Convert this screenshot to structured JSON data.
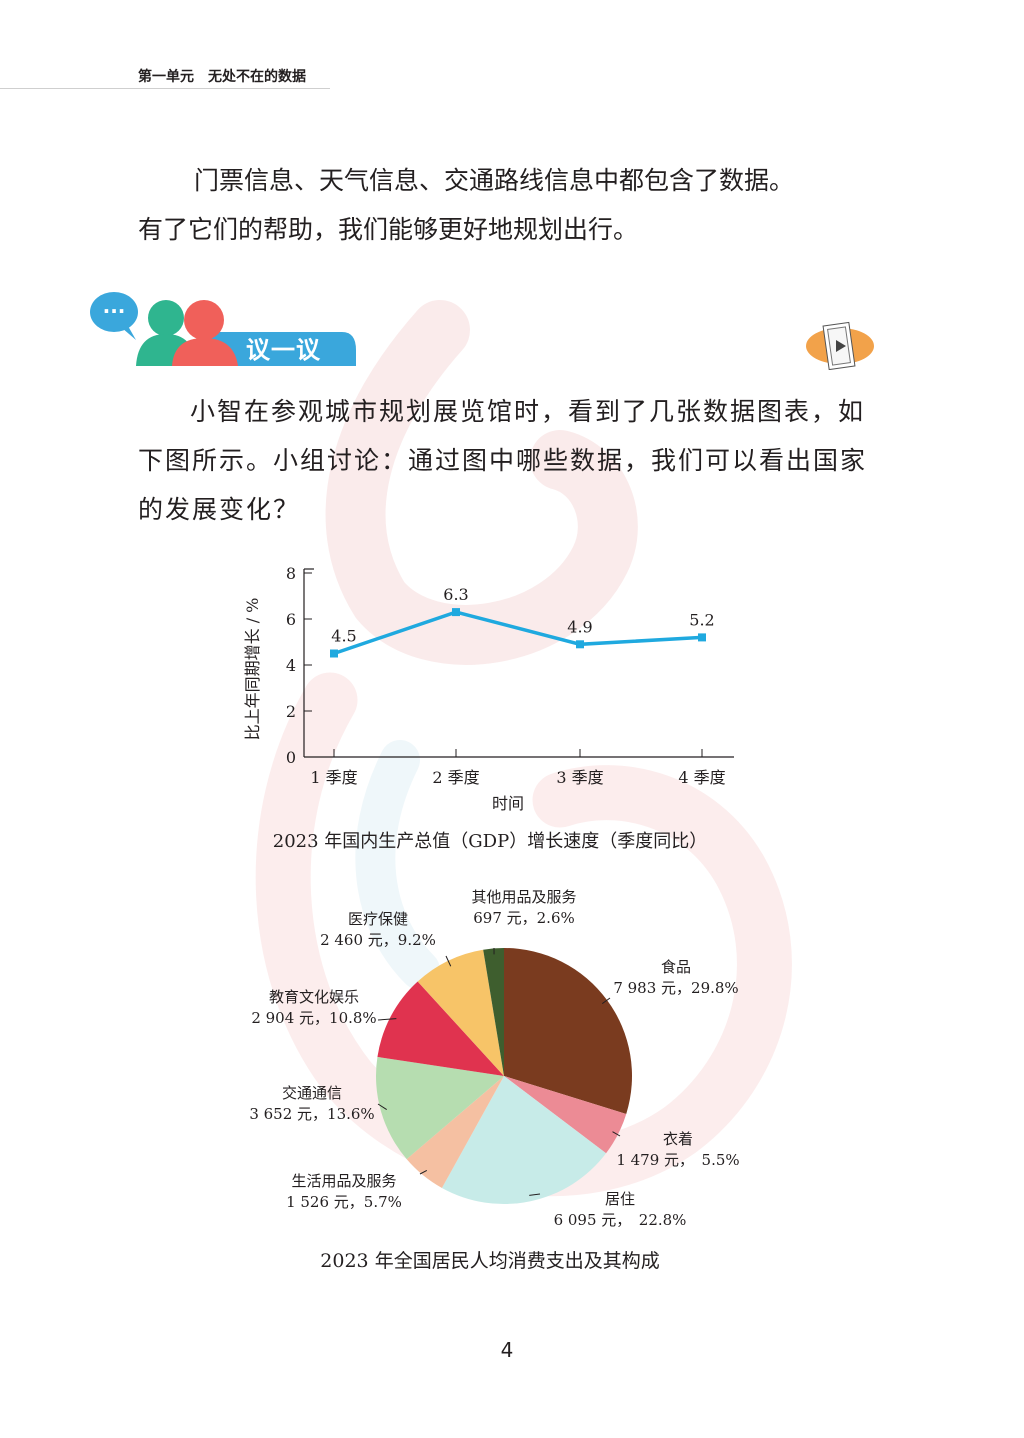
{
  "header": {
    "unit_title": "第一单元　无处不在的数据"
  },
  "intro": {
    "line1": "门票信息、天气信息、交通路线信息中都包含了数据。",
    "line2": "有了它们的帮助，我们能够更好地规划出行。"
  },
  "discuss": {
    "label": "议一议",
    "bubble": "···",
    "text": "小智在参观城市规划展览馆时，看到了几张数据图表，如下图所示。小组讨论：通过图中哪些数据，我们可以看出国家的发展变化？"
  },
  "colors": {
    "accent_blue": "#3aa7dc",
    "avatar_green": "#2fb58f",
    "avatar_red": "#f0605a",
    "video_orange": "#f2a24a",
    "line_blue": "#1fa9df"
  },
  "chart_data": [
    {
      "type": "line",
      "title": "2023 年国内生产总值（GDP）增长速度（季度同比）",
      "xlabel": "时间",
      "ylabel": "比上年同期增长 / %",
      "categories": [
        "1 季度",
        "2 季度",
        "3 季度",
        "4 季度"
      ],
      "values": [
        4.5,
        6.3,
        4.9,
        5.2
      ],
      "ylim": [
        0,
        8
      ],
      "yticks": [
        "0",
        "2",
        "4",
        "6",
        "8"
      ],
      "data_labels": [
        "4.5",
        "6.3",
        "4.9",
        "5.2"
      ],
      "grid": false
    },
    {
      "type": "pie",
      "title": "2023 年全国居民人均消费支出及其构成",
      "slices": [
        {
          "name": "食品",
          "value": 7983,
          "percent": 29.8,
          "detail": "7 983 元，29.8%",
          "color": "#7a3b1f"
        },
        {
          "name": "衣着",
          "value": 1479,
          "percent": 5.5,
          "detail": "1 479 元，　5.5%",
          "color": "#ec8b95"
        },
        {
          "name": "居住",
          "value": 6095,
          "percent": 22.8,
          "detail": "6 095 元，　22.8%",
          "color": "#c7ebe8"
        },
        {
          "name": "生活用品及服务",
          "value": 1526,
          "percent": 5.7,
          "detail": "1 526 元，5.7%",
          "color": "#f5c0a2"
        },
        {
          "name": "交通通信",
          "value": 3652,
          "percent": 13.6,
          "detail": "3 652 元，13.6%",
          "color": "#b6ddb0"
        },
        {
          "name": "教育文化娱乐",
          "value": 2904,
          "percent": 10.8,
          "detail": "2 904 元，10.8%",
          "color": "#e0334f"
        },
        {
          "name": "医疗保健",
          "value": 2460,
          "percent": 9.2,
          "detail": "2 460 元，9.2%",
          "color": "#f7c468"
        },
        {
          "name": "其他用品及服务",
          "value": 697,
          "percent": 2.6,
          "detail": "697 元，2.6%",
          "color": "#3e5e2e"
        }
      ]
    }
  ],
  "page_number": "4"
}
